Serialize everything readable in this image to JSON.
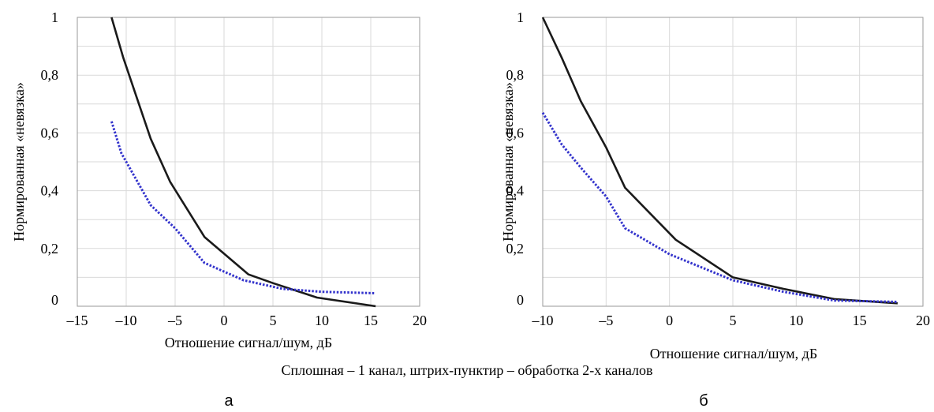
{
  "caption": "Сплошная – 1 канал, штрих-пунктир – обработка 2-х каналов",
  "colors": {
    "solid": "#1a1a1a",
    "dotted": "#3333cc",
    "grid": "#d9d9d9",
    "frame": "#9a9a9a"
  },
  "chart_data": [
    {
      "type": "line",
      "panel_label": "а",
      "xlabel": "Отношение сигнал/шум, дБ",
      "ylabel": "Нормированная «невязка»",
      "xlim": [
        -15,
        20
      ],
      "ylim": [
        0,
        1
      ],
      "xticks": [
        -15,
        -10,
        -5,
        0,
        5,
        10,
        15,
        20
      ],
      "xtick_labels": [
        "–15",
        "–10",
        "–5",
        "0",
        "5",
        "10",
        "15",
        "20"
      ],
      "yticks": [
        0,
        0.2,
        0.4,
        0.6,
        0.8,
        1
      ],
      "ytick_labels": [
        "0",
        "0,2",
        "0,4",
        "0,6",
        "0,8",
        "1"
      ],
      "grid": true,
      "series": [
        {
          "style": "solid",
          "x": [
            -11.5,
            -10.3,
            -9,
            -7.5,
            -5.5,
            -2,
            2.5,
            5,
            9.5,
            15.5
          ],
          "y": [
            1.0,
            0.86,
            0.73,
            0.58,
            0.43,
            0.24,
            0.11,
            0.08,
            0.03,
            0.0
          ]
        },
        {
          "style": "dotted",
          "x": [
            -11.5,
            -10.5,
            -9,
            -7.5,
            -5,
            -2,
            2,
            6,
            10,
            15.5
          ],
          "y": [
            0.64,
            0.53,
            0.44,
            0.35,
            0.27,
            0.15,
            0.09,
            0.06,
            0.05,
            0.045
          ]
        }
      ]
    },
    {
      "type": "line",
      "panel_label": "б",
      "xlabel": "Отношение сигнал/шум, дБ",
      "ylabel": "Нормированная «невязка»",
      "xlim": [
        -10,
        20
      ],
      "ylim": [
        0,
        1
      ],
      "xticks": [
        -10,
        -5,
        0,
        5,
        10,
        15,
        20
      ],
      "xtick_labels": [
        "–10",
        "–5",
        "0",
        "5",
        "10",
        "15",
        "20"
      ],
      "yticks": [
        0,
        0.2,
        0.4,
        0.6,
        0.8,
        1
      ],
      "ytick_labels": [
        "0",
        "0,2",
        "0,4",
        "0,6",
        "0,8",
        "1"
      ],
      "grid": true,
      "series": [
        {
          "style": "solid",
          "x": [
            -10,
            -8.5,
            -7,
            -5,
            -3.5,
            0.5,
            5,
            9,
            13,
            18
          ],
          "y": [
            1.0,
            0.86,
            0.71,
            0.55,
            0.41,
            0.23,
            0.1,
            0.06,
            0.025,
            0.01
          ]
        },
        {
          "style": "dotted",
          "x": [
            -10,
            -8.5,
            -7,
            -5,
            -3.5,
            0,
            5,
            9,
            13,
            18
          ],
          "y": [
            0.67,
            0.56,
            0.48,
            0.38,
            0.27,
            0.18,
            0.09,
            0.05,
            0.02,
            0.015
          ]
        }
      ]
    }
  ]
}
